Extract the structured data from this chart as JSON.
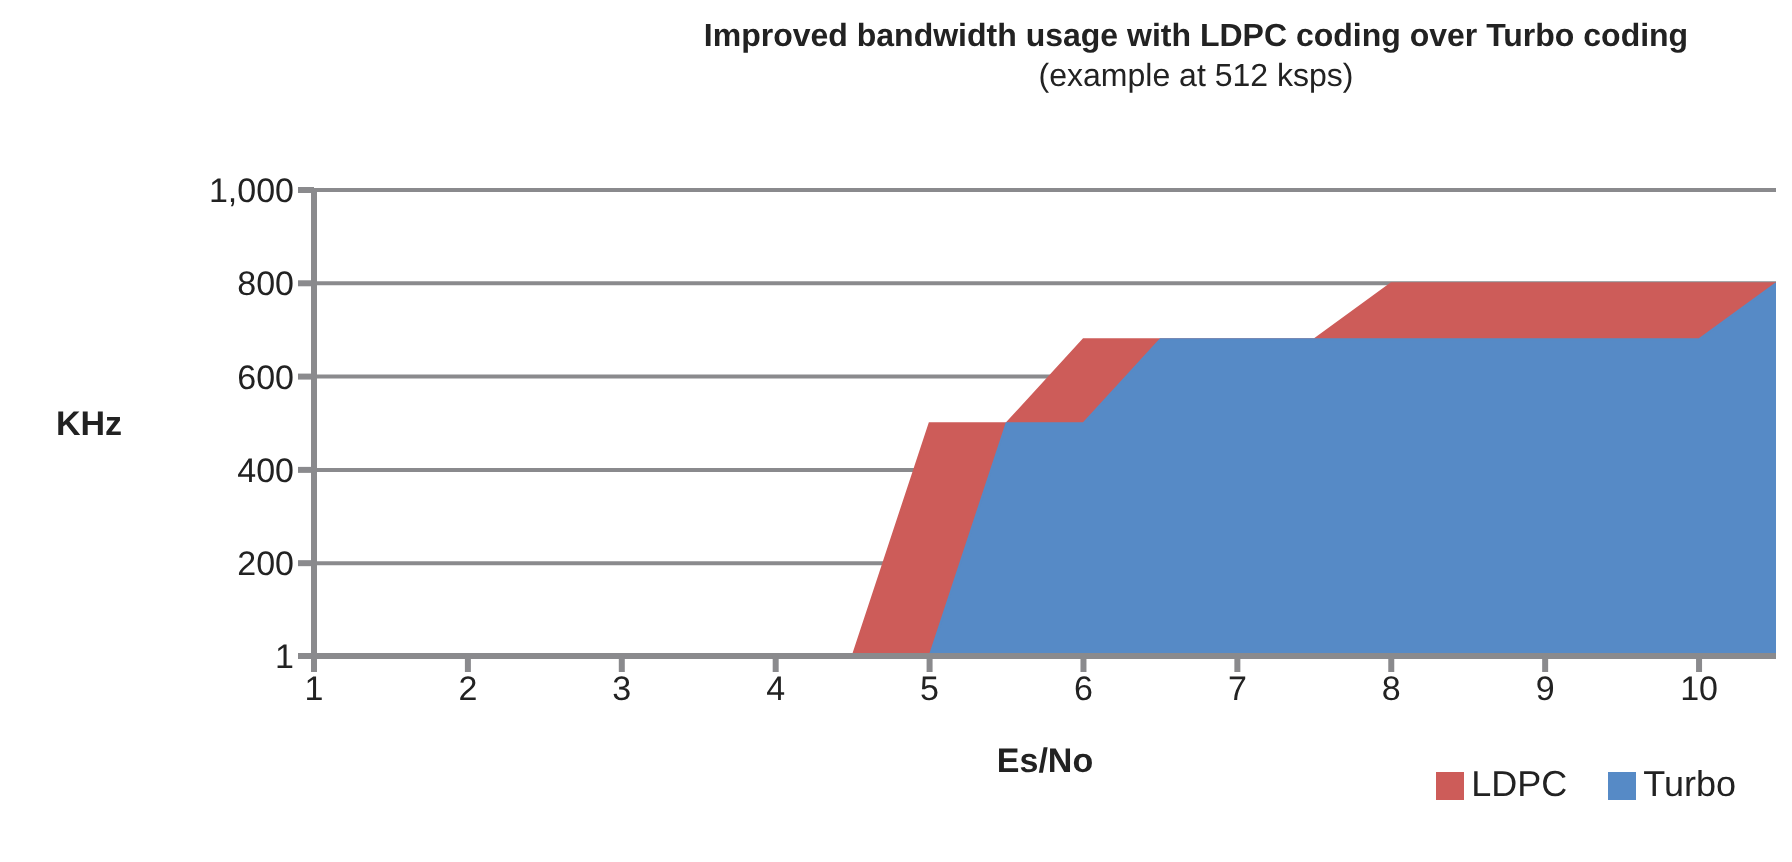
{
  "chart_data": {
    "type": "area",
    "title": "Improved bandwidth usage with LDPC coding over Turbo coding",
    "subtitle": "(example at 512 ksps)",
    "xlabel": "Es/No",
    "ylabel": "KHz",
    "x": [
      4.5,
      5,
      5.5,
      6,
      6.5,
      7.5,
      8,
      10,
      10.5
    ],
    "series": [
      {
        "name": "LDPC",
        "color": "#cd5c59",
        "values": [
          1,
          500,
          500,
          680,
          680,
          680,
          800,
          800,
          800
        ]
      },
      {
        "name": "Turbo",
        "color": "#568ac6",
        "values": [
          null,
          1,
          500,
          500,
          680,
          680,
          680,
          680,
          800
        ]
      }
    ],
    "xlim": [
      1,
      10.5
    ],
    "xticks": [
      1,
      2,
      3,
      4,
      5,
      6,
      7,
      8,
      9,
      10
    ],
    "ylim": [
      1,
      1000
    ],
    "yticks": [
      1,
      200,
      400,
      600,
      800,
      {
        "value": 1000,
        "label": "1,000"
      }
    ],
    "grid": "y",
    "legend": "bottom right"
  }
}
